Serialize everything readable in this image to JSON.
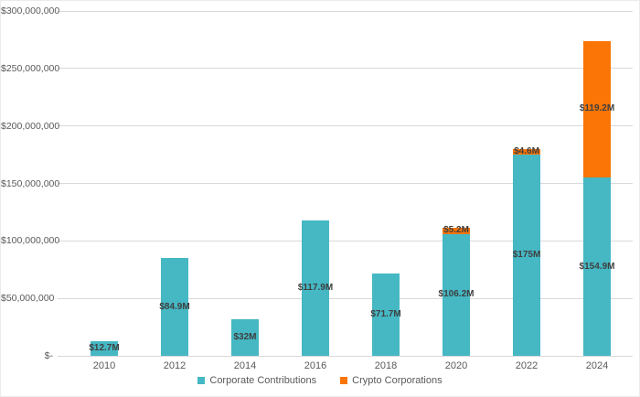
{
  "chart_data": {
    "type": "bar",
    "stacked": true,
    "title": "",
    "xlabel": "",
    "ylabel": "",
    "grid": true,
    "legend_position": "bottom",
    "categories": [
      "2010",
      "2012",
      "2014",
      "2016",
      "2018",
      "2020",
      "2022",
      "2024"
    ],
    "series": [
      {
        "name": "Corporate Contributions",
        "color": "#45b8c4",
        "values": [
          12700000,
          84900000,
          32000000,
          117900000,
          71700000,
          106200000,
          175000000,
          154900000
        ],
        "labels": [
          "$12.7M",
          "$84.9M",
          "$32M",
          "$117.9M",
          "$71.7M",
          "$106.2M",
          "$175M",
          "$154.9M"
        ]
      },
      {
        "name": "Crypto Corporations",
        "color": "#fa7505",
        "values": [
          0,
          0,
          0,
          0,
          0,
          5200000,
          4600000,
          119200000
        ],
        "labels": [
          "",
          "",
          "",
          "",
          "",
          "$5.2M",
          "$4.6M",
          "$119.2M"
        ]
      }
    ],
    "y_axis": {
      "ylim": [
        0,
        300000000
      ],
      "ticks": [
        {
          "label": "$300,000,000",
          "value": 300000000
        },
        {
          "label": "$250,000,000",
          "value": 250000000
        },
        {
          "label": "$200,000,000",
          "value": 200000000
        },
        {
          "label": "$150,000,000",
          "value": 150000000
        },
        {
          "label": "$100,000,000",
          "value": 100000000
        },
        {
          "label": "$50,000,000",
          "value": 50000000
        },
        {
          "label": "$-",
          "value": 0
        }
      ]
    },
    "colors": {
      "background": "#ffffff",
      "gridline": "#d9d9d9",
      "axis_text": "#595959",
      "data_label": "#3f3f3f"
    }
  }
}
